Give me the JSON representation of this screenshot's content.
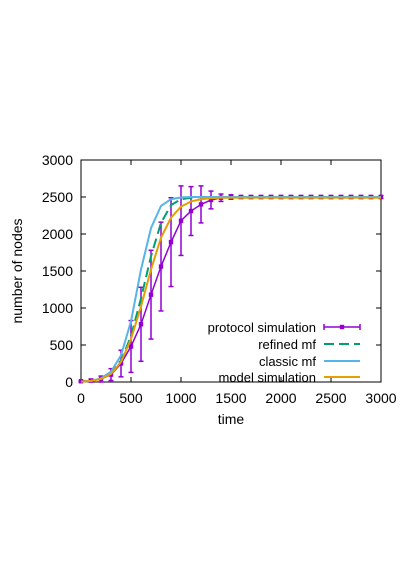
{
  "chart_data": {
    "type": "line",
    "title": "",
    "xlabel": "time",
    "ylabel": "number of nodes",
    "xlim": [
      0,
      3000
    ],
    "ylim": [
      0,
      3000
    ],
    "xticks": [
      0,
      500,
      1000,
      1500,
      2000,
      2500,
      3000
    ],
    "yticks": [
      0,
      500,
      1000,
      1500,
      2000,
      2500,
      3000
    ],
    "grid": false,
    "legend_position": "bottom-right",
    "series": [
      {
        "name": "protocol simulation",
        "color": "#9400d3",
        "style": "line-points-errorbars",
        "points": [
          {
            "x": 0,
            "y": 10,
            "err": 10
          },
          {
            "x": 100,
            "y": 20,
            "err": 20
          },
          {
            "x": 200,
            "y": 40,
            "err": 40
          },
          {
            "x": 300,
            "y": 100,
            "err": 80
          },
          {
            "x": 400,
            "y": 250,
            "err": 180
          },
          {
            "x": 500,
            "y": 480,
            "err": 350
          },
          {
            "x": 600,
            "y": 780,
            "err": 500
          },
          {
            "x": 700,
            "y": 1180,
            "err": 600
          },
          {
            "x": 800,
            "y": 1560,
            "err": 600
          },
          {
            "x": 900,
            "y": 1890,
            "err": 600
          },
          {
            "x": 1000,
            "y": 2180,
            "err": 470
          },
          {
            "x": 1100,
            "y": 2310,
            "err": 330
          },
          {
            "x": 1200,
            "y": 2400,
            "err": 250
          },
          {
            "x": 1300,
            "y": 2460,
            "err": 120
          },
          {
            "x": 1400,
            "y": 2490,
            "err": 50
          },
          {
            "x": 1500,
            "y": 2500,
            "err": 30
          },
          {
            "x": 1600,
            "y": 2500,
            "err": 20
          },
          {
            "x": 1700,
            "y": 2500,
            "err": 20
          },
          {
            "x": 1800,
            "y": 2500,
            "err": 20
          },
          {
            "x": 1900,
            "y": 2500,
            "err": 20
          },
          {
            "x": 2000,
            "y": 2500,
            "err": 20
          },
          {
            "x": 2100,
            "y": 2500,
            "err": 20
          },
          {
            "x": 2200,
            "y": 2500,
            "err": 20
          },
          {
            "x": 2300,
            "y": 2500,
            "err": 20
          },
          {
            "x": 2400,
            "y": 2500,
            "err": 20
          },
          {
            "x": 2500,
            "y": 2500,
            "err": 20
          },
          {
            "x": 2600,
            "y": 2500,
            "err": 20
          },
          {
            "x": 2700,
            "y": 2500,
            "err": 20
          },
          {
            "x": 2800,
            "y": 2500,
            "err": 20
          },
          {
            "x": 2900,
            "y": 2500,
            "err": 20
          },
          {
            "x": 3000,
            "y": 2500,
            "err": 20
          }
        ]
      },
      {
        "name": "refined mf",
        "color": "#009e73",
        "style": "dashed",
        "x": [
          0,
          100,
          200,
          300,
          400,
          500,
          600,
          700,
          800,
          900,
          1000,
          1100,
          1200,
          1300,
          1500,
          2000,
          2500,
          3000
        ],
        "y": [
          5,
          15,
          45,
          120,
          290,
          620,
          1130,
          1700,
          2150,
          2390,
          2470,
          2490,
          2500,
          2500,
          2500,
          2500,
          2500,
          2500
        ]
      },
      {
        "name": "classic mf",
        "color": "#56b4e9",
        "style": "solid",
        "x": [
          0,
          100,
          200,
          300,
          400,
          500,
          600,
          700,
          800,
          900,
          1000,
          1100,
          1200,
          1500,
          2000,
          2500,
          3000
        ],
        "y": [
          5,
          15,
          50,
          140,
          360,
          820,
          1520,
          2080,
          2380,
          2470,
          2495,
          2500,
          2500,
          2500,
          2500,
          2500,
          2500
        ]
      },
      {
        "name": "model simulation",
        "color": "#e69f00",
        "style": "solid",
        "x": [
          0,
          100,
          200,
          300,
          400,
          500,
          600,
          700,
          800,
          900,
          1000,
          1100,
          1200,
          1300,
          1400,
          1500,
          2000,
          2500,
          3000
        ],
        "y": [
          5,
          15,
          40,
          110,
          270,
          580,
          1020,
          1520,
          1950,
          2220,
          2370,
          2440,
          2470,
          2485,
          2490,
          2490,
          2490,
          2490,
          2490
        ]
      }
    ]
  }
}
